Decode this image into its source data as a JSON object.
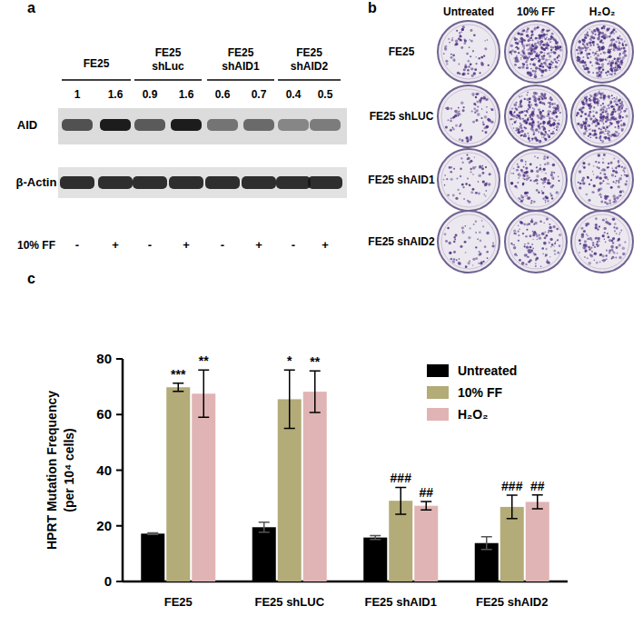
{
  "panel_labels": [
    "a",
    "b",
    "c"
  ],
  "blot": {
    "groups": [
      "FE25",
      "FE25 shLuc",
      "FE25 shAID1",
      "FE25 shAID2"
    ],
    "quantification": [
      1,
      1.6,
      0.9,
      1.6,
      0.6,
      0.7,
      0.4,
      0.5
    ],
    "rows": [
      "AID",
      "β-Actin"
    ],
    "treatment_label": "10% FF",
    "treatment": [
      "-",
      "+",
      "-",
      "+",
      "-",
      "+",
      "-",
      "+"
    ]
  },
  "plates": {
    "columns": [
      "Untreated",
      "10% FF",
      "H₂O₂"
    ],
    "rows": [
      "FE25",
      "FE25 shLUC",
      "FE25 shAID1",
      "FE25 shAID2"
    ]
  },
  "chart_data": {
    "type": "bar",
    "y_label": [
      "HPRT Mutation Frequency",
      "(per 10⁴ cells)"
    ],
    "categories": [
      "FE25",
      "FE25 shLUC",
      "FE25 shAID1",
      "FE25 shAID2"
    ],
    "series": [
      {
        "name": "Untreated",
        "color": "#000000",
        "values": [
          17.2,
          19.5,
          15.8,
          13.8
        ],
        "errors": [
          0.3,
          1.8,
          0.7,
          2.3
        ]
      },
      {
        "name": "10% FF",
        "color": "#b3ab78",
        "values": [
          69.8,
          65.5,
          29.0,
          26.8
        ],
        "errors": [
          1.5,
          10.5,
          4.8,
          4.2
        ],
        "annotations": [
          "***",
          "*",
          "###",
          "###"
        ]
      },
      {
        "name": "H₂O₂",
        "color": "#e0b4b4",
        "values": [
          67.5,
          68.2,
          27.2,
          28.6
        ],
        "errors": [
          8.5,
          7.5,
          1.5,
          2.5
        ],
        "annotations": [
          "**",
          "**",
          "##",
          "##"
        ]
      }
    ],
    "ylim": [
      0,
      80
    ],
    "yticks": [
      0,
      20,
      40,
      60,
      80
    ],
    "grid": false,
    "legend": "top-right"
  }
}
